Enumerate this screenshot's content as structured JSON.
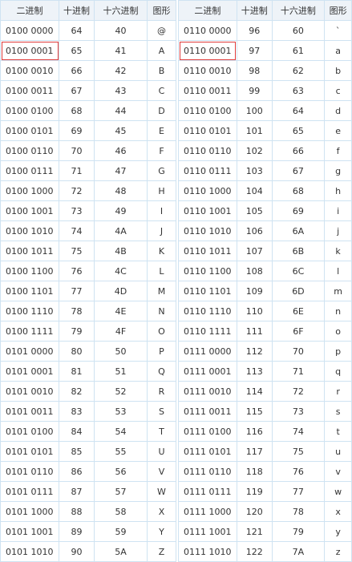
{
  "headers": [
    "二进制",
    "十进制",
    "十六进制",
    "图形"
  ],
  "left_rows": [
    [
      "0100 0000",
      "64",
      "40",
      "@"
    ],
    [
      "0100 0001",
      "65",
      "41",
      "A"
    ],
    [
      "0100 0010",
      "66",
      "42",
      "B"
    ],
    [
      "0100 0011",
      "67",
      "43",
      "C"
    ],
    [
      "0100 0100",
      "68",
      "44",
      "D"
    ],
    [
      "0100 0101",
      "69",
      "45",
      "E"
    ],
    [
      "0100 0110",
      "70",
      "46",
      "F"
    ],
    [
      "0100 0111",
      "71",
      "47",
      "G"
    ],
    [
      "0100 1000",
      "72",
      "48",
      "H"
    ],
    [
      "0100 1001",
      "73",
      "49",
      "I"
    ],
    [
      "0100 1010",
      "74",
      "4A",
      "J"
    ],
    [
      "0100 1011",
      "75",
      "4B",
      "K"
    ],
    [
      "0100 1100",
      "76",
      "4C",
      "L"
    ],
    [
      "0100 1101",
      "77",
      "4D",
      "M"
    ],
    [
      "0100 1110",
      "78",
      "4E",
      "N"
    ],
    [
      "0100 1111",
      "79",
      "4F",
      "O"
    ],
    [
      "0101 0000",
      "80",
      "50",
      "P"
    ],
    [
      "0101 0001",
      "81",
      "51",
      "Q"
    ],
    [
      "0101 0010",
      "82",
      "52",
      "R"
    ],
    [
      "0101 0011",
      "83",
      "53",
      "S"
    ],
    [
      "0101 0100",
      "84",
      "54",
      "T"
    ],
    [
      "0101 0101",
      "85",
      "55",
      "U"
    ],
    [
      "0101 0110",
      "86",
      "56",
      "V"
    ],
    [
      "0101 0111",
      "87",
      "57",
      "W"
    ],
    [
      "0101 1000",
      "88",
      "58",
      "X"
    ],
    [
      "0101 1001",
      "89",
      "59",
      "Y"
    ],
    [
      "0101 1010",
      "90",
      "5A",
      "Z"
    ]
  ],
  "right_rows": [
    [
      "0110 0000",
      "96",
      "60",
      "`"
    ],
    [
      "0110 0001",
      "97",
      "61",
      "a"
    ],
    [
      "0110 0010",
      "98",
      "62",
      "b"
    ],
    [
      "0110 0011",
      "99",
      "63",
      "c"
    ],
    [
      "0110 0100",
      "100",
      "64",
      "d"
    ],
    [
      "0110 0101",
      "101",
      "65",
      "e"
    ],
    [
      "0110 0110",
      "102",
      "66",
      "f"
    ],
    [
      "0110 0111",
      "103",
      "67",
      "g"
    ],
    [
      "0110 1000",
      "104",
      "68",
      "h"
    ],
    [
      "0110 1001",
      "105",
      "69",
      "i"
    ],
    [
      "0110 1010",
      "106",
      "6A",
      "j"
    ],
    [
      "0110 1011",
      "107",
      "6B",
      "k"
    ],
    [
      "0110 1100",
      "108",
      "6C",
      "l"
    ],
    [
      "0110 1101",
      "109",
      "6D",
      "m"
    ],
    [
      "0110 1110",
      "110",
      "6E",
      "n"
    ],
    [
      "0110 1111",
      "111",
      "6F",
      "o"
    ],
    [
      "0111 0000",
      "112",
      "70",
      "p"
    ],
    [
      "0111 0001",
      "113",
      "71",
      "q"
    ],
    [
      "0111 0010",
      "114",
      "72",
      "r"
    ],
    [
      "0111 0011",
      "115",
      "73",
      "s"
    ],
    [
      "0111 0100",
      "116",
      "74",
      "t"
    ],
    [
      "0111 0101",
      "117",
      "75",
      "u"
    ],
    [
      "0111 0110",
      "118",
      "76",
      "v"
    ],
    [
      "0111 0111",
      "119",
      "77",
      "w"
    ],
    [
      "0111 1000",
      "120",
      "78",
      "x"
    ],
    [
      "0111 1001",
      "121",
      "79",
      "y"
    ],
    [
      "0111 1010",
      "122",
      "7A",
      "z"
    ]
  ],
  "highlighted_row": 1,
  "colors": {
    "border": "#cfe3f2",
    "header_bg": "#eef3f8",
    "highlight": "#e03c3c"
  }
}
